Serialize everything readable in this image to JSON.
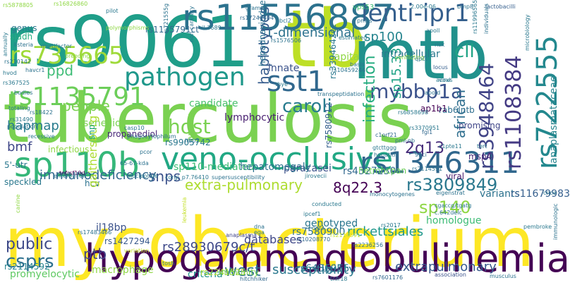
{
  "words": [
    {
      "text": "tuberculosis",
      "color": "#7AD151"
    },
    {
      "text": "mycobacterium",
      "color": "#FDE725"
    },
    {
      "text": "rs9061",
      "color": "#1F9E89"
    },
    {
      "text": "tb",
      "color": "#BDDF26"
    },
    {
      "text": "mtb",
      "color": "#21918C"
    },
    {
      "text": "hypogammaglobulinemia",
      "color": "#440154"
    },
    {
      "text": "rs11556887",
      "color": "#2C728E"
    },
    {
      "text": "sp110b",
      "color": "#35B779"
    },
    {
      "text": "veno-occlusive",
      "color": "#22A884"
    },
    {
      "text": "rs1346311",
      "color": "#30678D"
    },
    {
      "text": "pathogen",
      "color": "#1F988B"
    },
    {
      "text": "sst1",
      "color": "#31688E"
    },
    {
      "text": "lenti-ipr1",
      "color": "#355F8D"
    },
    {
      "text": "rs735665",
      "color": "#9FDA3A"
    },
    {
      "text": "rs1135791",
      "color": "#6CCE59"
    },
    {
      "text": "rs722555",
      "color": "#23888E"
    },
    {
      "text": "rs1108384",
      "color": "#443A83"
    },
    {
      "text": "rs3948464",
      "color": "#414487"
    },
    {
      "text": "mybbp1a",
      "color": "#3B528B"
    },
    {
      "text": "caroli",
      "color": "#287C8E"
    },
    {
      "text": "host",
      "color": "#7AD151"
    },
    {
      "text": "cll",
      "color": "#20A486"
    },
    {
      "text": "csprs",
      "color": "#2D708E"
    },
    {
      "text": "west",
      "color": "#2C728E"
    },
    {
      "text": "rs3809849",
      "color": "#2A788E"
    },
    {
      "text": "sp140",
      "color": "#8FD744"
    },
    {
      "text": "2q13",
      "color": "#472D7B"
    },
    {
      "text": "public",
      "color": "#3E4A89"
    },
    {
      "text": "ptb",
      "color": "#414487"
    },
    {
      "text": "susceptibility",
      "color": "#2A788E"
    },
    {
      "text": "extrapulmonary",
      "color": "#38598C"
    },
    {
      "text": "infection",
      "color": "#27AD81"
    },
    {
      "text": "1-dimensional",
      "color": "#2C728E"
    },
    {
      "text": "haplotypes",
      "color": "#365C8D"
    },
    {
      "text": "ppd",
      "color": "#3CBC75"
    },
    {
      "text": "people",
      "color": "#7AD151"
    },
    {
      "text": "snps",
      "color": "#3B528B"
    },
    {
      "text": "extra-pulmonary",
      "color": "#ADDC30"
    },
    {
      "text": "8q22.3",
      "color": "#440154"
    },
    {
      "text": "immunodeficiency",
      "color": "#31688E"
    },
    {
      "text": "hapmap",
      "color": "#287C8E"
    },
    {
      "text": "african",
      "color": "#2E6E8E"
    },
    {
      "text": "sp15.33",
      "color": "#20A386"
    },
    {
      "text": "rs28930679c/t",
      "color": "#3E4989"
    },
    {
      "text": "sp100",
      "color": "#25848E"
    },
    {
      "text": "databases",
      "color": "#3F4788"
    },
    {
      "text": "macrophage",
      "color": "#8FD744"
    },
    {
      "text": "criteria",
      "color": "#21918C"
    },
    {
      "text": "rickettsiales",
      "color": "#1F988B"
    },
    {
      "text": "homologue",
      "color": "#3CBC75"
    },
    {
      "text": "promyelocytic",
      "color": "#5EC962"
    },
    {
      "text": "genotyped",
      "color": "#2A768E"
    },
    {
      "text": "bmf",
      "color": "#3F4788"
    },
    {
      "text": "candidate",
      "color": "#4AC16D"
    },
    {
      "text": "lymphocytic",
      "color": "#481F70"
    },
    {
      "text": "paracasei",
      "color": "#3B528B"
    },
    {
      "text": "rs4327230",
      "color": "#31688E"
    },
    {
      "text": "variants",
      "color": "#2C728E"
    },
    {
      "text": "rs11679983",
      "color": "#355F8D"
    },
    {
      "text": "sp110-mediated",
      "color": "#3CBC75"
    },
    {
      "text": "hepatomegaly",
      "color": "#2C728E"
    },
    {
      "text": "innate",
      "color": "#3B528B"
    },
    {
      "text": "intracellular",
      "color": "#2A788E"
    },
    {
      "text": "capita",
      "color": "#8FD744"
    },
    {
      "text": "rs7580900",
      "color": "#2D708E"
    },
    {
      "text": "rs6436915",
      "color": "#2A788E"
    },
    {
      "text": "msp4",
      "color": "#482576"
    },
    {
      "text": "rab6lntb",
      "color": "#2E6E8E"
    },
    {
      "text": "ap1b1",
      "color": "#440154"
    },
    {
      "text": "viral",
      "color": "#481A6C"
    },
    {
      "text": "promising",
      "color": "#404688"
    },
    {
      "text": "rs1427294",
      "color": "#38598C"
    },
    {
      "text": "rs2241525",
      "color": "#ADDC30"
    },
    {
      "text": "rs5878805",
      "color": "#8FD744"
    },
    {
      "text": "rs1135791ct",
      "color": "#31688E"
    },
    {
      "text": "immunity",
      "color": "#7AD151"
    },
    {
      "text": "senecio",
      "color": "#7AD151"
    },
    {
      "text": "speckled",
      "color": "#2A788E"
    },
    {
      "text": "il18bp",
      "color": "#3B528B"
    },
    {
      "text": "hcv",
      "color": "#2C728E"
    },
    {
      "text": "5'-utr",
      "color": "#2A788E"
    },
    {
      "text": "propanediol",
      "color": "#482878"
    },
    {
      "text": "rs9905742",
      "color": "#2A788E"
    },
    {
      "text": "gaithersburg",
      "color": "#ADDC30"
    },
    {
      "text": "rs2114592",
      "color": "#26828E"
    },
    {
      "text": "siadh",
      "color": "#27AD81"
    },
    {
      "text": "genus",
      "color": "#2A788E"
    },
    {
      "text": "hepadnaviridae",
      "color": "#2C728E"
    },
    {
      "text": "vps53",
      "color": "#3CBC75"
    },
    {
      "text": "anaplasmataceae",
      "color": "#25848E"
    },
    {
      "text": "infectious",
      "color": "#8FD744"
    },
    {
      "text": "amaxa",
      "color": "#7AD151"
    },
    {
      "text": "rs7580912",
      "color": "#355F8D"
    },
    {
      "text": "hetmhcpan",
      "color": "#6CCE59"
    },
    {
      "text": "snp",
      "color": "#20A486"
    },
    {
      "text": "rs3394642cc",
      "color": "#2A788E"
    },
    {
      "text": "variation",
      "color": "#C2DF23"
    },
    {
      "text": "leukemia",
      "color": "#C2DF23"
    },
    {
      "text": "tnfrsf10d",
      "color": "#440154"
    },
    {
      "text": "hitchhiker",
      "color": "#31688E"
    },
    {
      "text": "musculus",
      "color": "#2C728E"
    },
    {
      "text": "association",
      "color": "#3B528B"
    },
    {
      "text": "rs7601176",
      "color": "#31688E"
    },
    {
      "text": "tnfr18",
      "color": "#2A788E"
    },
    {
      "text": "welsh",
      "color": "#2C728E"
    },
    {
      "text": "anaplasma",
      "color": "#414487"
    },
    {
      "text": "rs2236256",
      "color": "#2C728E"
    },
    {
      "text": "rs10208770",
      "color": "#31688E"
    },
    {
      "text": "conflicting",
      "color": "#8FD744"
    },
    {
      "text": "estimated",
      "color": "#2A788E"
    },
    {
      "text": "basis",
      "color": "#2C728E"
    },
    {
      "text": "locus",
      "color": "#355F8D"
    },
    {
      "text": "acoxl",
      "color": "#2A788E"
    },
    {
      "text": "lactobacilli",
      "color": "#355F8D"
    },
    {
      "text": "microbiology",
      "color": "#2A788E"
    },
    {
      "text": "transpeptidation",
      "color": "#2C728E"
    },
    {
      "text": "fgl1",
      "color": "#31688E"
    },
    {
      "text": "c1orf21",
      "color": "#31688E"
    },
    {
      "text": "gtcttggg",
      "color": "#2A788E"
    },
    {
      "text": "pml-nb",
      "color": "#2C728E"
    },
    {
      "text": "rs6858698",
      "color": "#2A788E"
    },
    {
      "text": "rs2114591",
      "color": "#2C728E"
    },
    {
      "text": "tert",
      "color": "#2A788E"
    },
    {
      "text": "ltbp2",
      "color": "#2C728E"
    },
    {
      "text": "rs2114591",
      "color": "#C2DF23"
    },
    {
      "text": "rs3370951",
      "color": "#2A788E"
    },
    {
      "text": "pcor",
      "color": "#2C728E"
    },
    {
      "text": "rs17246404",
      "color": "#31688E"
    },
    {
      "text": "gramdb",
      "color": "#2C728E"
    },
    {
      "text": "bcl2",
      "color": "#2A788E"
    },
    {
      "text": "rs1576506",
      "color": "#2C728E"
    },
    {
      "text": "2.00e-06",
      "color": "#2A788E"
    },
    {
      "text": "bmp8",
      "color": "#2C728E"
    },
    {
      "text": "apoll",
      "color": "#2A788E"
    },
    {
      "text": "risk",
      "color": "#2C728E"
    },
    {
      "text": "rs11996565",
      "color": "#2A788E"
    },
    {
      "text": "individuals",
      "color": "#2C728E"
    },
    {
      "text": "pilot",
      "color": "#2A788E"
    },
    {
      "text": "polymorphisms",
      "color": "#8FD744"
    },
    {
      "text": "rs16826860",
      "color": "#8FD744"
    },
    {
      "text": "il-3689",
      "color": "#2A788E"
    },
    {
      "text": "non-caretary",
      "color": "#2C728E"
    },
    {
      "text": "annually",
      "color": "#2A788E"
    },
    {
      "text": "listeria",
      "color": "#2C728E"
    },
    {
      "text": "multifactor",
      "color": "#2A788E"
    },
    {
      "text": "rs210142",
      "color": "#2C728E"
    },
    {
      "text": "hvod",
      "color": "#2A788E"
    },
    {
      "text": "havcr1",
      "color": "#2C728E"
    },
    {
      "text": "breeding",
      "color": "#8FD744"
    },
    {
      "text": "rs367525",
      "color": "#2A788E"
    },
    {
      "text": "bodies",
      "color": "#2C728E"
    },
    {
      "text": "totaling",
      "color": "#2A788E"
    },
    {
      "text": "rs18422",
      "color": "#2C728E"
    },
    {
      "text": "rs31490",
      "color": "#2A788E"
    },
    {
      "text": "population",
      "color": "#2C728E"
    },
    {
      "text": "recessive",
      "color": "#2A788E"
    },
    {
      "text": "enteroviral",
      "color": "#2C728E"
    },
    {
      "text": "casp10",
      "color": "#2A788E"
    },
    {
      "text": "phagocytophilum",
      "color": "#2C728E"
    },
    {
      "text": "nucleotide",
      "color": "#2A788E"
    },
    {
      "text": "65-67-kda",
      "color": "#2C728E"
    },
    {
      "text": "corgi_p7.76410",
      "color": "#2A788E"
    },
    {
      "text": "supersusceptibility",
      "color": "#2C728E"
    },
    {
      "text": "jirovecii",
      "color": "#2A788E"
    },
    {
      "text": "monocytogenes",
      "color": "#2C728E"
    },
    {
      "text": "conducted",
      "color": "#2A788E"
    },
    {
      "text": "eigenstrat",
      "color": "#2C728E"
    },
    {
      "text": "cgaccg/tgatg",
      "color": "#2A788E"
    },
    {
      "text": "c.642delc",
      "color": "#2C728E"
    },
    {
      "text": "pembroke",
      "color": "#2A788E"
    },
    {
      "text": "immunologic",
      "color": "#2C728E"
    },
    {
      "text": "cnce",
      "color": "#2A788E"
    },
    {
      "text": "hepatitis",
      "color": "#2C728E"
    },
    {
      "text": "c1pte11",
      "color": "#2A788E"
    },
    {
      "text": "95ci",
      "color": "#2C728E"
    },
    {
      "text": "ipcef1",
      "color": "#2A788E"
    },
    {
      "text": "odf3",
      "color": "#2C728E"
    },
    {
      "text": "canine",
      "color": "#8FD744"
    },
    {
      "text": "tosh",
      "color": "#2A788E"
    },
    {
      "text": "rs17483466",
      "color": "#2C728E"
    },
    {
      "text": "ega",
      "color": "#2A788E"
    },
    {
      "text": "dna",
      "color": "#2C728E"
    },
    {
      "text": "rs2017",
      "color": "#2A788E"
    },
    {
      "text": "apoid",
      "color": "#2C728E"
    },
    {
      "text": "virus",
      "color": "#2A788E"
    },
    {
      "text": "rs10459244",
      "color": "#2C728E"
    },
    {
      "text": "qpct",
      "color": "#2A788E"
    },
    {
      "text": "pmcs",
      "color": "#2C728E"
    },
    {
      "text": "thye",
      "color": "#2A788E"
    },
    {
      "text": "rs721555g",
      "color": "#2C728E"
    }
  ]
}
